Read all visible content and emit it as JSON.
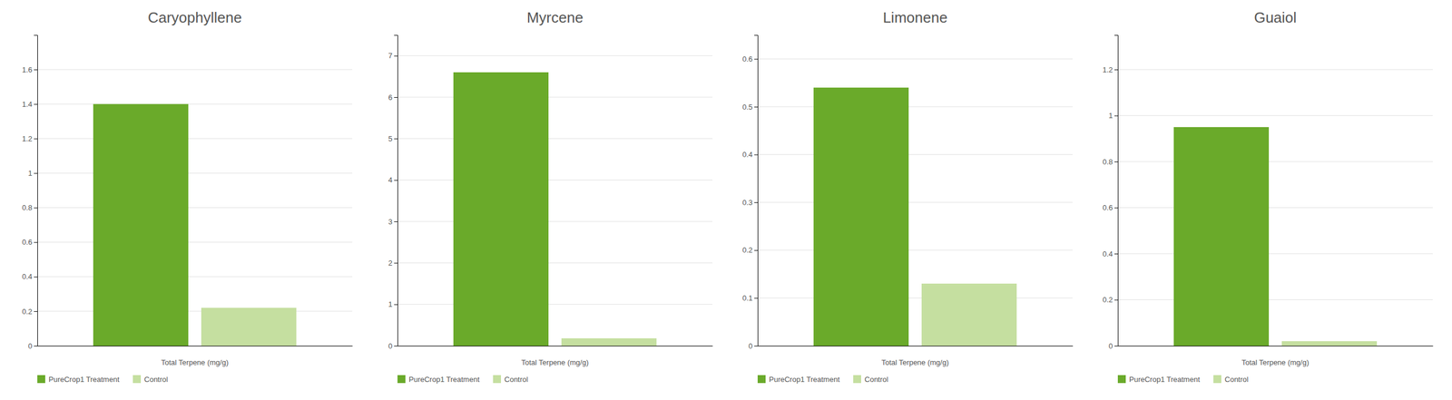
{
  "chart_data": [
    {
      "type": "bar",
      "title": "Caryophyllene",
      "xlabel": "Total Terpene (mg/g)",
      "categories": [
        null
      ],
      "series": [
        {
          "name": "PureCrop1 Treatment",
          "color": "#6aaa2a",
          "values": [
            1.4
          ]
        },
        {
          "name": "Control",
          "color": "#c5dfa0",
          "values": [
            0.22
          ]
        }
      ],
      "ylim": [
        0,
        1.8
      ],
      "yticks": [
        0,
        0.2,
        0.4,
        0.6,
        0.8,
        1,
        1.2,
        1.4,
        1.6
      ],
      "grid": true,
      "legend": "lower-left"
    },
    {
      "type": "bar",
      "title": "Myrcene",
      "xlabel": "Total Terpene (mg/g)",
      "categories": [
        null
      ],
      "series": [
        {
          "name": "PureCrop1 Treatment",
          "color": "#6aaa2a",
          "values": [
            6.6
          ]
        },
        {
          "name": "Control",
          "color": "#c5dfa0",
          "values": [
            0.18
          ]
        }
      ],
      "ylim": [
        0,
        7.5
      ],
      "yticks": [
        0,
        1,
        2,
        3,
        4,
        5,
        6,
        7
      ],
      "grid": true,
      "legend": "lower-left"
    },
    {
      "type": "bar",
      "title": "Limonene",
      "xlabel": "Total Terpene (mg/g)",
      "categories": [
        null
      ],
      "series": [
        {
          "name": "PureCrop1 Treatment",
          "color": "#6aaa2a",
          "values": [
            0.54
          ]
        },
        {
          "name": "Control",
          "color": "#c5dfa0",
          "values": [
            0.13
          ]
        }
      ],
      "ylim": [
        0,
        0.65
      ],
      "yticks": [
        0,
        0.1,
        0.2,
        0.3,
        0.4,
        0.5,
        0.6
      ],
      "grid": true,
      "legend": "lower-left"
    },
    {
      "type": "bar",
      "title": "Guaiol",
      "xlabel": "Total Terpene (mg/g)",
      "categories": [
        null
      ],
      "series": [
        {
          "name": "PureCrop1 Treatment",
          "color": "#6aaa2a",
          "values": [
            0.95
          ]
        },
        {
          "name": "Control",
          "color": "#c5dfa0",
          "values": [
            0.02
          ]
        }
      ],
      "ylim": [
        0,
        1.35
      ],
      "yticks": [
        0,
        0.2,
        0.4,
        0.6,
        0.8,
        1,
        1.2
      ],
      "grid": true,
      "legend": "lower-left"
    }
  ]
}
